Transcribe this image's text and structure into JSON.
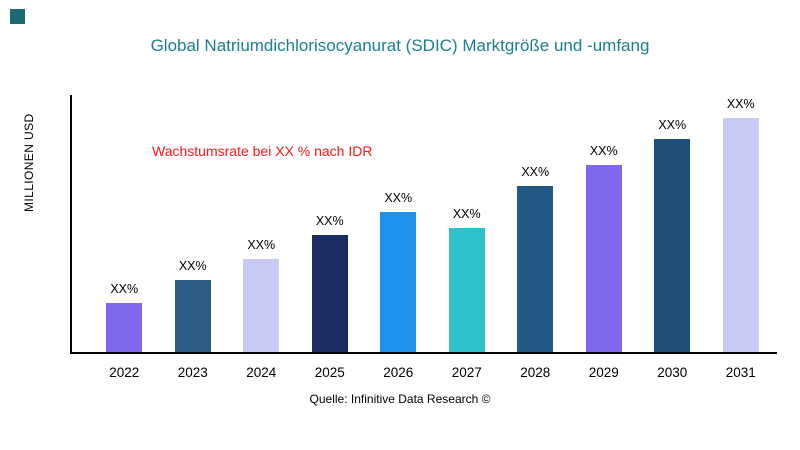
{
  "title": "Global Natriumdichlorisocyanurat (SDIC) Marktgröße und -umfang",
  "source": "Quelle: Infinitive Data Research ©",
  "colors": {
    "logo": "#1e6a73",
    "title": "#1a8090",
    "annotation": "#ff1616",
    "axis": "#000000"
  },
  "chart_data": {
    "type": "bar",
    "title": "Global Natriumdichlorisocyanurat (SDIC) Marktgröße und -umfang",
    "xlabel": "",
    "ylabel": "MILLIONEN USD",
    "categories": [
      "2022",
      "2023",
      "2024",
      "2025",
      "2026",
      "2027",
      "2028",
      "2029",
      "2030",
      "2031"
    ],
    "values": [
      21,
      31,
      40,
      50,
      60,
      53,
      71,
      80,
      91,
      100
    ],
    "value_labels": [
      "XX%",
      "XX%",
      "XX%",
      "XX%",
      "XX%",
      "XX%",
      "XX%",
      "XX%",
      "XX%",
      "XX%"
    ],
    "bar_colors": [
      "#7d68ec",
      "#2b5d87",
      "#c7cbf2",
      "#1b2c63",
      "#2191ee",
      "#2fc2cb",
      "#235a85",
      "#7d68ec",
      "#1f4e79",
      "#c7cbf2"
    ],
    "ylim": [
      0,
      110
    ],
    "grid": false,
    "legend": "none",
    "annotation": "Wachstumsrate bei XX % nach IDR"
  }
}
